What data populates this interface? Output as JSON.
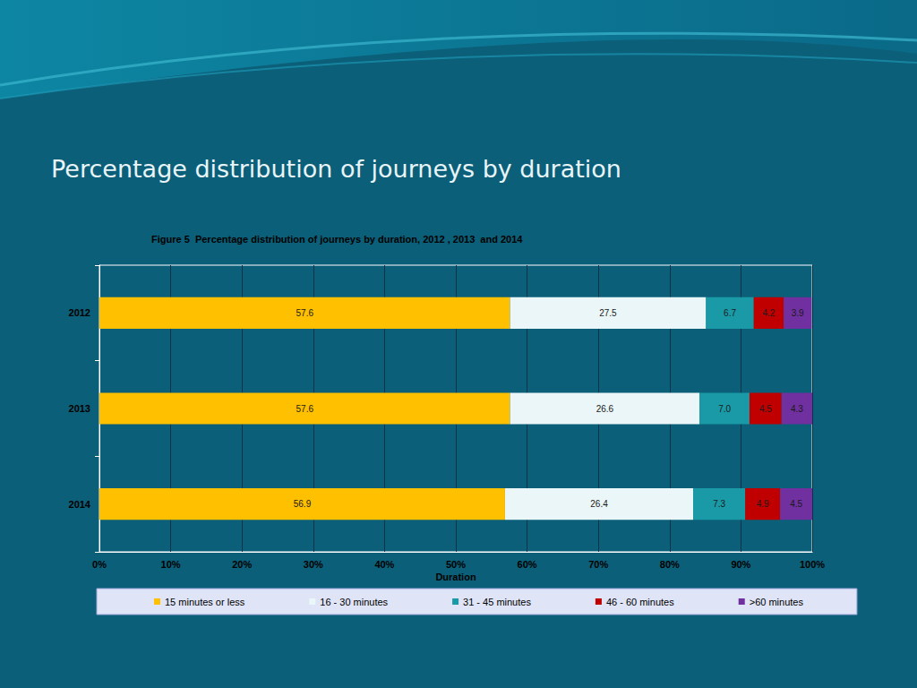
{
  "heading": "Percentage distribution of journeys by duration",
  "chart_data": {
    "type": "bar",
    "title": "Figure 5  Percentage distribution of journeys by duration, 2012 , 2013  and 2014",
    "orientation": "horizontal",
    "stacked": true,
    "data_labels": true,
    "grid": true,
    "legend": "bottom",
    "xlabel": "Duration",
    "categories": [
      "2012",
      "2013",
      "2014"
    ],
    "xlim": [
      0,
      100
    ],
    "xticks": [
      {
        "value": 0,
        "label": "0%"
      },
      {
        "value": 10,
        "label": "10%"
      },
      {
        "value": 20,
        "label": "20%"
      },
      {
        "value": 30,
        "label": "30%"
      },
      {
        "value": 40,
        "label": "40%"
      },
      {
        "value": 50,
        "label": "50%"
      },
      {
        "value": 60,
        "label": "60%"
      },
      {
        "value": 70,
        "label": "70%"
      },
      {
        "value": 80,
        "label": "80%"
      },
      {
        "value": 90,
        "label": "90%"
      },
      {
        "value": 100,
        "label": "100%"
      }
    ],
    "series": [
      {
        "name": "15 minutes or less",
        "color": "#ffc000",
        "values": [
          57.6,
          57.6,
          56.9
        ]
      },
      {
        "name": "16 - 30 minutes",
        "color": "#eaf6f8",
        "values": [
          27.5,
          26.6,
          26.4
        ]
      },
      {
        "name": "31 - 45 minutes",
        "color": "#1a9aa6",
        "values": [
          6.7,
          7.0,
          7.3
        ],
        "value_labels": [
          "6.7",
          "7.0",
          "7.3"
        ]
      },
      {
        "name": "46 - 60 minutes",
        "color": "#c00000",
        "values": [
          4.2,
          4.5,
          4.9
        ]
      },
      {
        "name": ">60 minutes",
        "color": "#7030a0",
        "values": [
          3.9,
          4.3,
          4.5
        ]
      }
    ]
  }
}
